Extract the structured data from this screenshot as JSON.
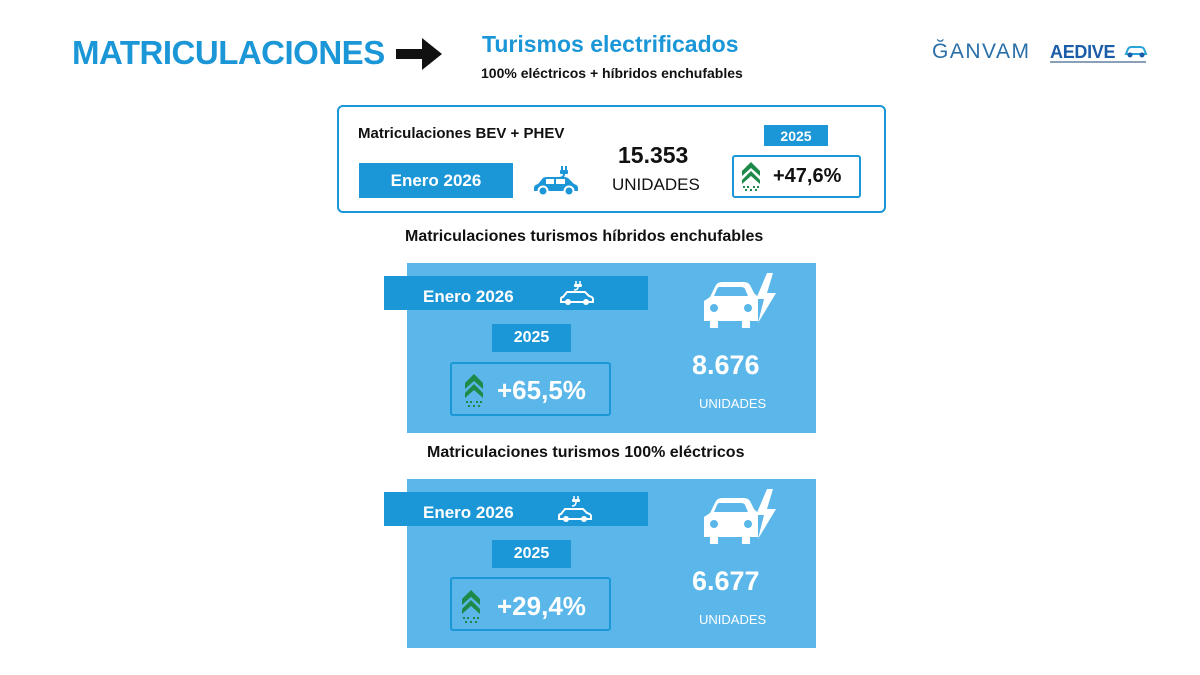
{
  "header": {
    "title": "MATRICULACIONES",
    "subtitle": "Turismos electrificados",
    "subsubtitle": "100% eléctricos + híbridos enchufables",
    "logos": {
      "ganvam": "ĞANVAM",
      "aedive": "AEDIVE"
    }
  },
  "summary": {
    "label": "Matriculaciones BEV + PHEV",
    "period": "Enero 2026",
    "value": "15.353",
    "unit": "UNIDADES",
    "compare_year": "2025",
    "change": "+47,6%"
  },
  "phev": {
    "section_title": "Matriculaciones turismos híbridos enchufables",
    "period": "Enero 2026",
    "compare_year": "2025",
    "change": "+65,5%",
    "value": "8.676",
    "unit": "UNIDADES"
  },
  "bev": {
    "section_title": "Matriculaciones turismos 100% eléctricos",
    "period": "Enero 2026",
    "compare_year": "2025",
    "change": "+29,4%",
    "value": "6.677",
    "unit": "UNIDADES"
  },
  "colors": {
    "accent": "#1b96d6",
    "panel": "#5bb7ea",
    "up_arrow": "#1e8a4a"
  },
  "icons": [
    "arrow-right-icon",
    "car-plug-icon",
    "growth-chevron-icon",
    "car-lightning-icon"
  ]
}
